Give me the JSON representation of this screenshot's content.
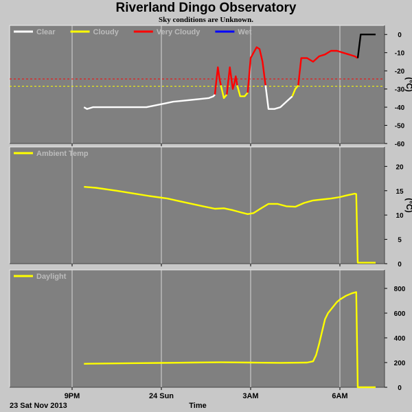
{
  "title": "Riverland Dingo Observatory",
  "subtitle": "Sky conditions are Unknown.",
  "x_axis": {
    "label": "Time",
    "date_label": "23 Sat Nov 2013",
    "ticks": [
      {
        "t": 1.0,
        "label": "9PM"
      },
      {
        "t": 4.0,
        "label": "24 Sun"
      },
      {
        "t": 7.0,
        "label": "3AM"
      },
      {
        "t": 10.0,
        "label": "6AM"
      }
    ],
    "range_hours_after_8pm": [
      -1.1,
      11.5
    ]
  },
  "chart_data": [
    {
      "type": "line",
      "name": "sky-temperature",
      "ylabel": "(°C)",
      "ylim": [
        -60,
        5
      ],
      "yticks": [
        0,
        -10,
        -20,
        -30,
        -40,
        -50,
        -60
      ],
      "legend": [
        {
          "label": "Clear",
          "color": "#ffffff"
        },
        {
          "label": "Cloudy",
          "color": "#ffff00"
        },
        {
          "label": "Very Cloudy",
          "color": "#ff0000"
        },
        {
          "label": "Wet",
          "color": "#0000ff"
        }
      ],
      "thresholds": [
        {
          "value": -24.5,
          "color": "#ff0000"
        },
        {
          "value": -28.5,
          "color": "#ffff00"
        }
      ],
      "segments": [
        {
          "color": "#ffffff",
          "x": [
            1.4,
            1.5,
            1.7,
            2.0,
            2.3,
            2.6,
            2.9,
            3.2,
            3.5,
            3.8,
            4.1,
            4.4,
            4.7,
            5.0,
            5.3,
            5.6,
            5.75,
            5.8
          ],
          "y": [
            -40,
            -41,
            -40,
            -40,
            -40,
            -40,
            -40,
            -40,
            -40,
            -39,
            -38,
            -37,
            -36.5,
            -36,
            -35.5,
            -35,
            -34,
            -33
          ]
        },
        {
          "color": "#ff0000",
          "x": [
            5.8,
            5.85,
            5.9,
            5.95,
            6.0
          ],
          "y": [
            -33,
            -25,
            -18,
            -24,
            -28
          ]
        },
        {
          "color": "#ffff00",
          "x": [
            6.0,
            6.1,
            6.2
          ],
          "y": [
            -28,
            -35,
            -33
          ]
        },
        {
          "color": "#ff0000",
          "x": [
            6.2,
            6.3,
            6.4,
            6.45,
            6.5,
            6.55
          ],
          "y": [
            -33,
            -18,
            -30,
            -27,
            -23,
            -28
          ]
        },
        {
          "color": "#ffff00",
          "x": [
            6.55,
            6.65,
            6.8,
            6.9
          ],
          "y": [
            -28,
            -34,
            -34,
            -32
          ]
        },
        {
          "color": "#ff0000",
          "x": [
            6.9,
            7.0,
            7.1,
            7.2,
            7.3,
            7.4,
            7.5
          ],
          "y": [
            -32,
            -13,
            -10,
            -7,
            -8,
            -15,
            -28
          ]
        },
        {
          "color": "#ffffff",
          "x": [
            7.5,
            7.6,
            7.8,
            8.0,
            8.2,
            8.4
          ],
          "y": [
            -28,
            -41,
            -41,
            -40,
            -37,
            -34
          ]
        },
        {
          "color": "#ffff00",
          "x": [
            8.4,
            8.5,
            8.6
          ],
          "y": [
            -34,
            -30,
            -28
          ]
        },
        {
          "color": "#ff0000",
          "x": [
            8.6,
            8.7,
            8.9,
            9.1,
            9.3,
            9.5,
            9.7,
            9.9,
            10.1,
            10.3,
            10.5,
            10.6
          ],
          "y": [
            -28,
            -13,
            -13,
            -15,
            -12,
            -11,
            -9,
            -9,
            -10,
            -11,
            -12,
            -13
          ]
        },
        {
          "color": "#000000",
          "x": [
            10.6,
            10.7,
            11.2
          ],
          "y": [
            -13,
            0,
            0
          ]
        }
      ]
    },
    {
      "type": "line",
      "name": "ambient-temperature",
      "ylabel": "(°C)",
      "ylim": [
        0,
        24
      ],
      "yticks": [
        0,
        5,
        10,
        15,
        20
      ],
      "legend": [
        {
          "label": "Ambient Temp",
          "color": "#ffff00"
        }
      ],
      "series": [
        {
          "color": "#ffff00",
          "x": [
            1.4,
            1.8,
            2.5,
            3.0,
            3.6,
            4.2,
            4.8,
            5.4,
            5.8,
            6.1,
            6.4,
            6.7,
            6.9,
            7.1,
            7.3,
            7.6,
            7.9,
            8.2,
            8.5,
            8.8,
            9.1,
            9.4,
            9.7,
            10.0,
            10.2,
            10.5,
            10.55,
            10.6,
            11.2
          ],
          "y": [
            15.8,
            15.6,
            15,
            14.5,
            13.9,
            13.4,
            12.6,
            11.8,
            11.3,
            11.4,
            11,
            10.5,
            10.2,
            10.4,
            11.2,
            12.3,
            12.3,
            11.8,
            11.7,
            12.5,
            13,
            13.2,
            13.4,
            13.7,
            14,
            14.4,
            14.3,
            0.2,
            0.2
          ]
        }
      ]
    },
    {
      "type": "line",
      "name": "daylight",
      "ylabel": "",
      "ylim": [
        0,
        950
      ],
      "yticks": [
        0,
        200,
        400,
        600,
        800
      ],
      "legend": [
        {
          "label": "Daylight",
          "color": "#ffff00"
        }
      ],
      "series": [
        {
          "color": "#ffff00",
          "x": [
            1.4,
            2.0,
            3.0,
            4.0,
            5.0,
            6.0,
            7.0,
            8.0,
            8.9,
            9.1,
            9.2,
            9.3,
            9.4,
            9.5,
            9.6,
            9.7,
            9.8,
            9.9,
            10.0,
            10.2,
            10.4,
            10.55,
            10.6,
            11.2
          ],
          "y": [
            190,
            192,
            195,
            197,
            200,
            202,
            200,
            198,
            200,
            210,
            260,
            350,
            450,
            550,
            600,
            630,
            660,
            690,
            710,
            740,
            760,
            770,
            0,
            0
          ]
        }
      ]
    }
  ]
}
